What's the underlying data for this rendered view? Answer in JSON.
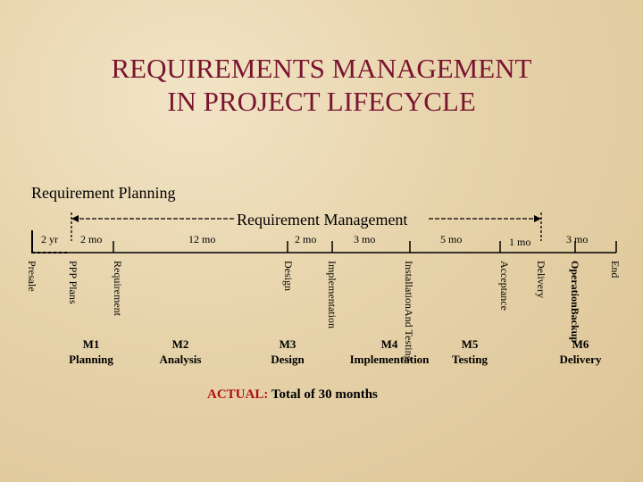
{
  "title": {
    "line1": "REQUIREMENTS MANAGEMENT",
    "line2": "IN PROJECT LIFECYCLE"
  },
  "requirement_planning": "Requirement Planning",
  "requirement_management": "Requirement Management",
  "durations": [
    "2 yr",
    "2 mo",
    "12 mo",
    "2 mo",
    "3 mo",
    "5 mo",
    "1 mo",
    "3 mo"
  ],
  "phases": [
    {
      "lines": [
        "Presale"
      ],
      "bold": false
    },
    {
      "lines": [
        "PPP Plans"
      ],
      "bold": false
    },
    {
      "lines": [
        "Requirement"
      ],
      "bold": false
    },
    {
      "lines": [
        "Design"
      ],
      "bold": false
    },
    {
      "lines": [
        "Implementation"
      ],
      "bold": false
    },
    {
      "lines": [
        "Installation",
        "And Testing"
      ],
      "bold": false
    },
    {
      "lines": [
        "Acceptance"
      ],
      "bold": false
    },
    {
      "lines": [
        "Delivery"
      ],
      "bold": false
    },
    {
      "lines": [
        "Operation",
        "Backup"
      ],
      "bold": true
    },
    {
      "lines": [
        "End"
      ],
      "bold": false
    }
  ],
  "milestones": [
    {
      "id": "M1",
      "name": "Planning"
    },
    {
      "id": "M2",
      "name": "Analysis"
    },
    {
      "id": "M3",
      "name": "Design"
    },
    {
      "id": "M4",
      "name": "Implementation"
    },
    {
      "id": "M5",
      "name": "Testing"
    },
    {
      "id": "M6",
      "name": "Delivery"
    }
  ],
  "actual": {
    "label": "ACTUAL:",
    "text": "Total of 30 months"
  },
  "colors": {
    "title": "#7a1430",
    "actual_label": "#b01010"
  }
}
